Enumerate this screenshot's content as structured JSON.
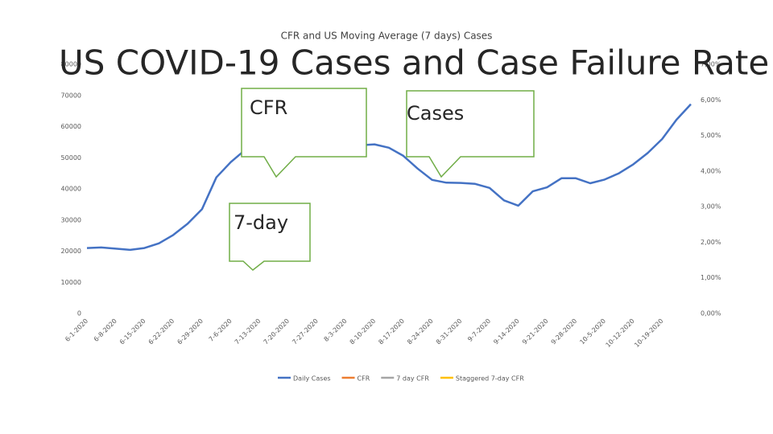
{
  "slide": {
    "title": "US COVID-19 Cases and Case Failure Rate"
  },
  "callouts": [
    "CFR",
    "Cases",
    "7-day"
  ],
  "chart_data": {
    "type": "line",
    "title": "CFR and US Moving Average (7 days) Cases",
    "categories": [
      "6-1-2020",
      null,
      "6-8-2020",
      null,
      "6-15-2020",
      null,
      "6-22-2020",
      null,
      "6-29-2020",
      null,
      "7-6-2020",
      null,
      "7-13-2020",
      null,
      "7-20-2020",
      null,
      "7-27-2020",
      null,
      "8-3-2020",
      null,
      "8-10-2020",
      null,
      "8-17-2020",
      null,
      "8-24-2020",
      null,
      "8-31-2020",
      null,
      "9-7-2020",
      null,
      "9-14-2020",
      null,
      "9-21-2020",
      null,
      "9-28-2020",
      null,
      "10-5-2020",
      null,
      "10-12-2020",
      null,
      "10-19-2020",
      null,
      null
    ],
    "series": [
      {
        "name": "Daily Cases",
        "color": "#4472c4",
        "values": [
          21000,
          21200,
          20800,
          20400,
          21000,
          22500,
          25200,
          28800,
          33500,
          43700,
          48600,
          52500,
          55000,
          57000,
          58000,
          57500,
          56500,
          55500,
          55000,
          54000,
          54300,
          53200,
          50600,
          46500,
          42900,
          42000,
          41900,
          41600,
          40300,
          36300,
          34600,
          39200,
          40500,
          43400,
          43400,
          41800,
          43000,
          45000,
          47900,
          51500,
          56000,
          62200,
          67200
        ]
      }
    ],
    "legend": [
      {
        "name": "Daily Cases",
        "color": "#4472c4"
      },
      {
        "name": "CFR",
        "color": "#ed7d31"
      },
      {
        "name": "7 day CFR",
        "color": "#a5a5a5"
      },
      {
        "name": "Staggered 7-day CFR",
        "color": "#ffc000"
      }
    ],
    "ylim": [
      0,
      80000
    ],
    "yticks": [
      0,
      10000,
      20000,
      30000,
      40000,
      50000,
      60000,
      70000,
      80000
    ],
    "y2lim": [
      0,
      7
    ],
    "y2ticks": [
      {
        "value": 0,
        "label": "0,00%"
      },
      {
        "value": 1,
        "label": "1,00%"
      },
      {
        "value": 2,
        "label": "2,00%"
      },
      {
        "value": 3,
        "label": "3,00%"
      },
      {
        "value": 4,
        "label": "4,00%"
      },
      {
        "value": 5,
        "label": "5,00%"
      },
      {
        "value": 6,
        "label": "6,00%"
      },
      {
        "value": 7,
        "label": "7,00%"
      }
    ]
  }
}
